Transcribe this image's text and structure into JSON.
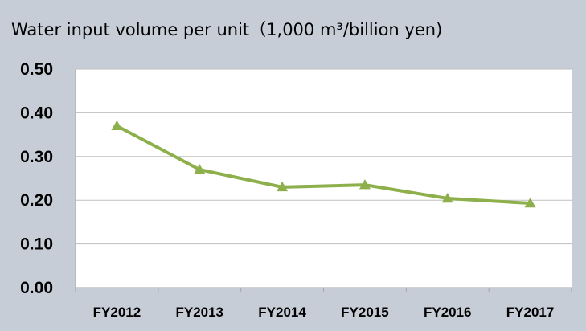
{
  "chart_data": {
    "type": "line",
    "title": "Water input volume per unit（1,000 m³/billion yen)",
    "categories": [
      "FY2012",
      "FY2013",
      "FY2014",
      "FY2015",
      "FY2016",
      "FY2017"
    ],
    "series": [
      {
        "values": [
          0.37,
          0.27,
          0.23,
          0.235,
          0.204,
          0.193
        ],
        "color": "#8db04c",
        "marker": "triangle"
      }
    ],
    "ylim": [
      0,
      0.5
    ],
    "yticks": [
      "0.00",
      "0.10",
      "0.20",
      "0.30",
      "0.40",
      "0.50"
    ],
    "grid": true,
    "legend": "none",
    "colors": {
      "background": "#c7cdd6",
      "plot_area": "#ffffff",
      "gridline": "#bfbfbf",
      "axis": "#a6a6a6"
    }
  }
}
